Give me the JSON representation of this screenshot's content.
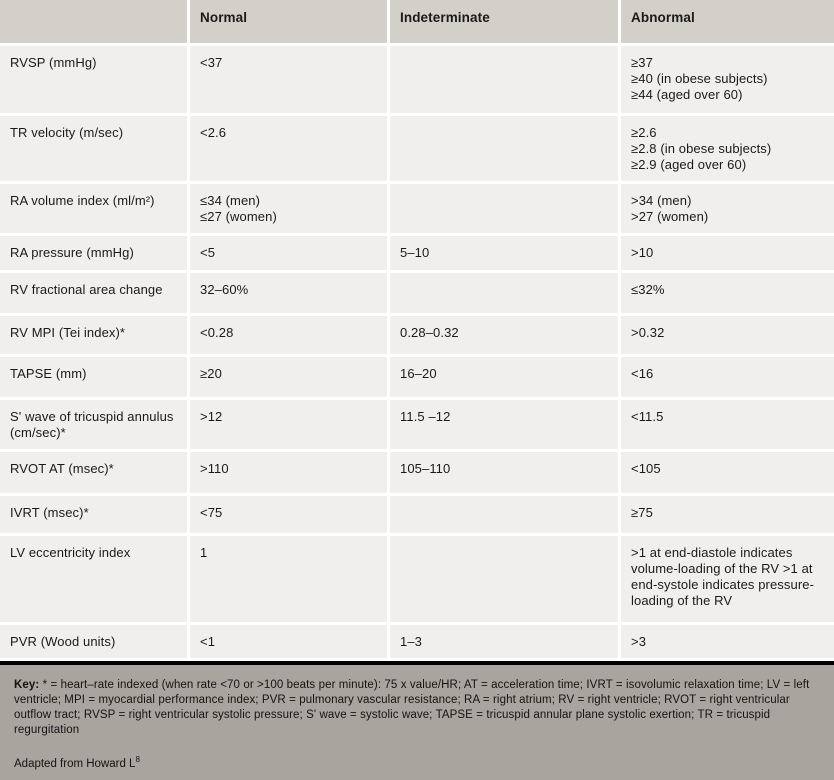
{
  "table": {
    "columns": [
      "",
      "Normal",
      "Indeterminate",
      "Abnormal"
    ],
    "rows": [
      {
        "parameter": "RVSP (mmHg)",
        "cells": [
          [
            "RVSP (mmHg)"
          ],
          [
            "<37"
          ],
          [],
          [
            "≥37",
            "≥40 (in obese subjects)",
            "≥44 (aged over 60)"
          ]
        ]
      },
      {
        "parameter": "TR velocity (m/sec)",
        "cells": [
          [
            "TR velocity (m/sec)"
          ],
          [
            "<2.6"
          ],
          [],
          [
            "≥2.6",
            "≥2.8 (in obese subjects)",
            "≥2.9 (aged over 60)"
          ]
        ]
      },
      {
        "parameter": "RA volume index (ml/m²)",
        "cells": [
          [
            "RA volume index (ml/m²)"
          ],
          [
            "≤34 (men)",
            "≤27 (women)"
          ],
          [],
          [
            ">34 (men)",
            ">27 (women)"
          ]
        ]
      },
      {
        "parameter": "RA pressure (mmHg)",
        "cells": [
          [
            "RA pressure (mmHg)"
          ],
          [
            "<5"
          ],
          [
            "5–10"
          ],
          [
            ">10"
          ]
        ]
      },
      {
        "parameter": "RV fractional area change",
        "cells": [
          [
            "RV fractional area change"
          ],
          [
            "32–60%"
          ],
          [],
          [
            "≤32%"
          ]
        ]
      },
      {
        "parameter": "RV MPI (Tei index)*",
        "cells": [
          [
            "RV MPI (Tei index)*"
          ],
          [
            "<0.28"
          ],
          [
            "0.28–0.32"
          ],
          [
            ">0.32"
          ]
        ]
      },
      {
        "parameter": "TAPSE (mm)",
        "cells": [
          [
            "TAPSE (mm)"
          ],
          [
            "≥20"
          ],
          [
            "16–20"
          ],
          [
            "<16"
          ]
        ]
      },
      {
        "parameter": "S' wave of tricuspid annulus (cm/sec)*",
        "cells": [
          [
            "S' wave of tricuspid annulus (cm/sec)*"
          ],
          [
            ">12"
          ],
          [
            "11.5 –12"
          ],
          [
            "<11.5"
          ]
        ]
      },
      {
        "parameter": "RVOT AT (msec)*",
        "cells": [
          [
            "RVOT AT (msec)*"
          ],
          [
            ">110"
          ],
          [
            "105–110"
          ],
          [
            "<105"
          ]
        ]
      },
      {
        "parameter": "IVRT (msec)*",
        "cells": [
          [
            "IVRT (msec)*"
          ],
          [
            "<75"
          ],
          [],
          [
            "≥75"
          ]
        ]
      },
      {
        "parameter": "LV eccentricity index",
        "cells": [
          [
            "LV eccentricity index"
          ],
          [
            "1"
          ],
          [],
          [
            ">1 at end-diastole indicates volume-loading of the RV >1 at end-systole indicates pressure-loading of the RV"
          ]
        ]
      },
      {
        "parameter": "PVR (Wood units)",
        "cells": [
          [
            "PVR (Wood units)"
          ],
          [
            "<1"
          ],
          [
            "1–3"
          ],
          [
            ">3"
          ]
        ]
      }
    ]
  },
  "footer": {
    "key_label": "Key:",
    "key_text": "* = heart–rate indexed (when rate <70 or >100 beats per minute): 75 x value/HR; AT = acceleration time; IVRT = isovolumic relaxation time; LV = left ventricle; MPI = myocardial performance index; PVR = pulmonary vascular resistance; RA = right atrium; RV = right ventricle; RVOT = right ventricular outflow tract; RVSP = right ventricular systolic pressure; S' wave = systolic wave; TAPSE = tricuspid annular plane systolic exertion; TR = tricuspid regurgitation",
    "attribution": "Adapted from Howard L",
    "attribution_sup": "8"
  },
  "colors": {
    "header_bg": "#d3cfc9",
    "row_bg": "#f0efed",
    "footer_bg": "#a8a49e",
    "divider": "#000000",
    "text": "#1a1a1a"
  }
}
